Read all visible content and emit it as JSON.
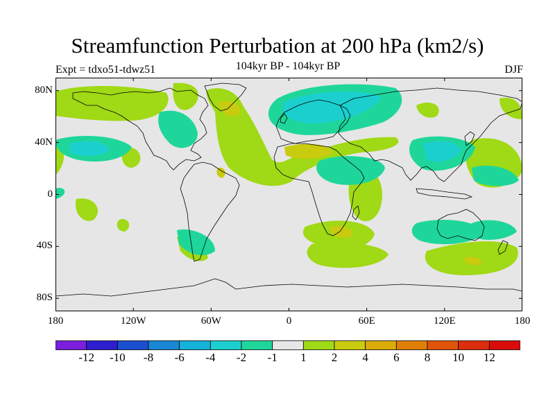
{
  "title": "Streamfunction Perturbation at 200 hPa (km2/s)",
  "subtitle_left": "Expt = tdxo51-tdwz51",
  "subtitle_center": "104kyr BP - 104kyr BP",
  "subtitle_right": "DJF",
  "map": {
    "projection": "cylindrical equidistant",
    "lon_range": [
      -180,
      180
    ],
    "lat_range": [
      -90,
      90
    ],
    "land_outline_color": "#000000",
    "background_color": "#e6e6e6",
    "y_ticks": [
      {
        "label": "80N",
        "lat": 80
      },
      {
        "label": "40N",
        "lat": 40
      },
      {
        "label": "0",
        "lat": 0
      },
      {
        "label": "40S",
        "lat": -40
      },
      {
        "label": "80S",
        "lat": -80
      }
    ],
    "x_ticks": [
      {
        "label": "180",
        "lon": -180
      },
      {
        "label": "120W",
        "lon": -120
      },
      {
        "label": "60W",
        "lon": -60
      },
      {
        "label": "0",
        "lon": 0
      },
      {
        "label": "60E",
        "lon": 60
      },
      {
        "label": "120E",
        "lon": 120
      },
      {
        "label": "180",
        "lon": 180
      }
    ]
  },
  "colorbar": {
    "colors": [
      "#7b1fdc",
      "#2d1ed0",
      "#1a4fd0",
      "#1787d6",
      "#15b2d9",
      "#1ccfcf",
      "#1fd69a",
      "#e6e6e6",
      "#a0d915",
      "#c9cb0f",
      "#dbab0a",
      "#e07f08",
      "#e0550a",
      "#dc2d0c",
      "#da0b0b"
    ],
    "labels": [
      "-12",
      "-10",
      "-8",
      "-6",
      "-4",
      "-2",
      "-1",
      "1",
      "2",
      "4",
      "6",
      "8",
      "10",
      "12"
    ]
  },
  "chart_data": {
    "type": "heatmap",
    "title": "Streamfunction Perturbation at 200 hPa (km2/s)",
    "subtitle": "104kyr BP - 104kyr BP",
    "season": "DJF",
    "experiment": "Expt = tdxo51-tdwz51",
    "units": "km2/s",
    "contour_levels": [
      -12,
      -10,
      -8,
      -6,
      -4,
      -2,
      -1,
      1,
      2,
      4,
      6,
      8,
      10,
      12
    ],
    "regions": [
      {
        "name": "N Pacific west",
        "lon": -165,
        "lat": 60,
        "sign": "positive",
        "level": 1
      },
      {
        "name": "Alaska/NE Pacific",
        "lon": -130,
        "lat": 58,
        "sign": "negative",
        "level": -1
      },
      {
        "name": "N Pacific subtropics",
        "lon": -150,
        "lat": 35,
        "sign": "negative",
        "level": -2
      },
      {
        "name": "Greenland",
        "lon": -40,
        "lat": 72,
        "sign": "positive",
        "level": 2
      },
      {
        "name": "N Atlantic",
        "lon": -35,
        "lat": 25,
        "sign": "positive",
        "level": 2
      },
      {
        "name": "Eurasia Arctic",
        "lon": 35,
        "lat": 68,
        "sign": "negative",
        "level": -2
      },
      {
        "name": "Mediterranean/Middle East",
        "lon": 20,
        "lat": 30,
        "sign": "positive",
        "level": 2
      },
      {
        "name": "Arabia/E Africa",
        "lon": 40,
        "lat": 15,
        "sign": "negative",
        "level": -1
      },
      {
        "name": "E Asia",
        "lon": 120,
        "lat": 35,
        "sign": "negative",
        "level": -2
      },
      {
        "name": "NW Pacific",
        "lon": 160,
        "lat": 20,
        "sign": "negative",
        "level": -1
      },
      {
        "name": "S Africa",
        "lon": 40,
        "lat": -30,
        "sign": "positive",
        "level": 2
      },
      {
        "name": "Australia",
        "lon": 130,
        "lat": -30,
        "sign": "negative",
        "level": -1
      },
      {
        "name": "S Pacific/Southern Ocean",
        "lon": 150,
        "lat": -50,
        "sign": "positive",
        "level": 2
      },
      {
        "name": "S America south",
        "lon": -65,
        "lat": -45,
        "sign": "negative",
        "level": -1
      },
      {
        "name": "S Atlantic",
        "lon": 30,
        "lat": -50,
        "sign": "positive",
        "level": 1
      }
    ]
  }
}
